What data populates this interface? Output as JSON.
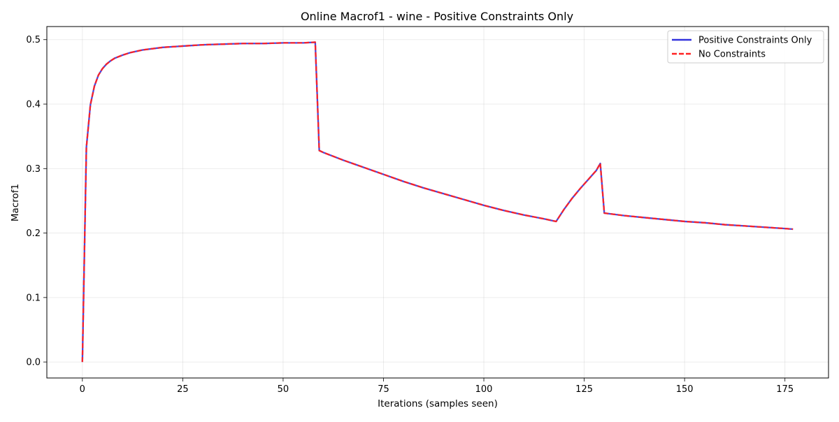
{
  "chart_data": {
    "type": "line",
    "title": "Online Macrof1 - wine - Positive Constraints Only",
    "xlabel": "Iterations (samples seen)",
    "ylabel": "Macrof1",
    "xlim": [
      -8.85,
      185.85
    ],
    "ylim": [
      -0.0248,
      0.5203
    ],
    "xticks": [
      0,
      25,
      50,
      75,
      100,
      125,
      150,
      175
    ],
    "xtick_labels": [
      "0",
      "25",
      "50",
      "75",
      "100",
      "125",
      "150",
      "175"
    ],
    "yticks": [
      0.0,
      0.1,
      0.2,
      0.3,
      0.4,
      0.5
    ],
    "ytick_labels": [
      "0.0",
      "0.1",
      "0.2",
      "0.3",
      "0.4",
      "0.5"
    ],
    "grid": true,
    "legend_position": "upper right",
    "series": [
      {
        "name": "Positive Constraints Only",
        "color": "#3333dd",
        "style": "solid",
        "points": [
          [
            0,
            0.0
          ],
          [
            1,
            0.333
          ],
          [
            2,
            0.399
          ],
          [
            3,
            0.428
          ],
          [
            4,
            0.445
          ],
          [
            5,
            0.455
          ],
          [
            6,
            0.462
          ],
          [
            7,
            0.467
          ],
          [
            8,
            0.471
          ],
          [
            10,
            0.476
          ],
          [
            12,
            0.48
          ],
          [
            15,
            0.484
          ],
          [
            20,
            0.488
          ],
          [
            25,
            0.49
          ],
          [
            30,
            0.492
          ],
          [
            35,
            0.493
          ],
          [
            40,
            0.494
          ],
          [
            45,
            0.494
          ],
          [
            50,
            0.495
          ],
          [
            55,
            0.495
          ],
          [
            58,
            0.496
          ],
          [
            59,
            0.328
          ],
          [
            60,
            0.325
          ],
          [
            65,
            0.313
          ],
          [
            70,
            0.302
          ],
          [
            75,
            0.291
          ],
          [
            80,
            0.28
          ],
          [
            85,
            0.27
          ],
          [
            90,
            0.261
          ],
          [
            95,
            0.252
          ],
          [
            100,
            0.243
          ],
          [
            105,
            0.235
          ],
          [
            110,
            0.228
          ],
          [
            115,
            0.222
          ],
          [
            118,
            0.218
          ],
          [
            120,
            0.237
          ],
          [
            122,
            0.254
          ],
          [
            124,
            0.269
          ],
          [
            126,
            0.283
          ],
          [
            128,
            0.297
          ],
          [
            129,
            0.308
          ],
          [
            130,
            0.231
          ],
          [
            135,
            0.227
          ],
          [
            140,
            0.224
          ],
          [
            145,
            0.221
          ],
          [
            150,
            0.218
          ],
          [
            155,
            0.216
          ],
          [
            160,
            0.213
          ],
          [
            165,
            0.211
          ],
          [
            170,
            0.209
          ],
          [
            175,
            0.207
          ],
          [
            177,
            0.206
          ]
        ]
      },
      {
        "name": "No Constraints",
        "color": "#ff2222",
        "style": "dashed",
        "points": [
          [
            0,
            0.0
          ],
          [
            1,
            0.333
          ],
          [
            2,
            0.399
          ],
          [
            3,
            0.428
          ],
          [
            4,
            0.445
          ],
          [
            5,
            0.455
          ],
          [
            6,
            0.462
          ],
          [
            7,
            0.467
          ],
          [
            8,
            0.471
          ],
          [
            10,
            0.476
          ],
          [
            12,
            0.48
          ],
          [
            15,
            0.484
          ],
          [
            20,
            0.488
          ],
          [
            25,
            0.49
          ],
          [
            30,
            0.492
          ],
          [
            35,
            0.493
          ],
          [
            40,
            0.494
          ],
          [
            45,
            0.494
          ],
          [
            50,
            0.495
          ],
          [
            55,
            0.495
          ],
          [
            58,
            0.496
          ],
          [
            59,
            0.328
          ],
          [
            60,
            0.325
          ],
          [
            65,
            0.313
          ],
          [
            70,
            0.302
          ],
          [
            75,
            0.291
          ],
          [
            80,
            0.28
          ],
          [
            85,
            0.27
          ],
          [
            90,
            0.261
          ],
          [
            95,
            0.252
          ],
          [
            100,
            0.243
          ],
          [
            105,
            0.235
          ],
          [
            110,
            0.228
          ],
          [
            115,
            0.222
          ],
          [
            118,
            0.218
          ],
          [
            120,
            0.237
          ],
          [
            122,
            0.254
          ],
          [
            124,
            0.269
          ],
          [
            126,
            0.283
          ],
          [
            128,
            0.297
          ],
          [
            129,
            0.308
          ],
          [
            130,
            0.231
          ],
          [
            135,
            0.227
          ],
          [
            140,
            0.224
          ],
          [
            145,
            0.221
          ],
          [
            150,
            0.218
          ],
          [
            155,
            0.216
          ],
          [
            160,
            0.213
          ],
          [
            165,
            0.211
          ],
          [
            170,
            0.209
          ],
          [
            175,
            0.207
          ],
          [
            177,
            0.206
          ]
        ]
      }
    ]
  }
}
